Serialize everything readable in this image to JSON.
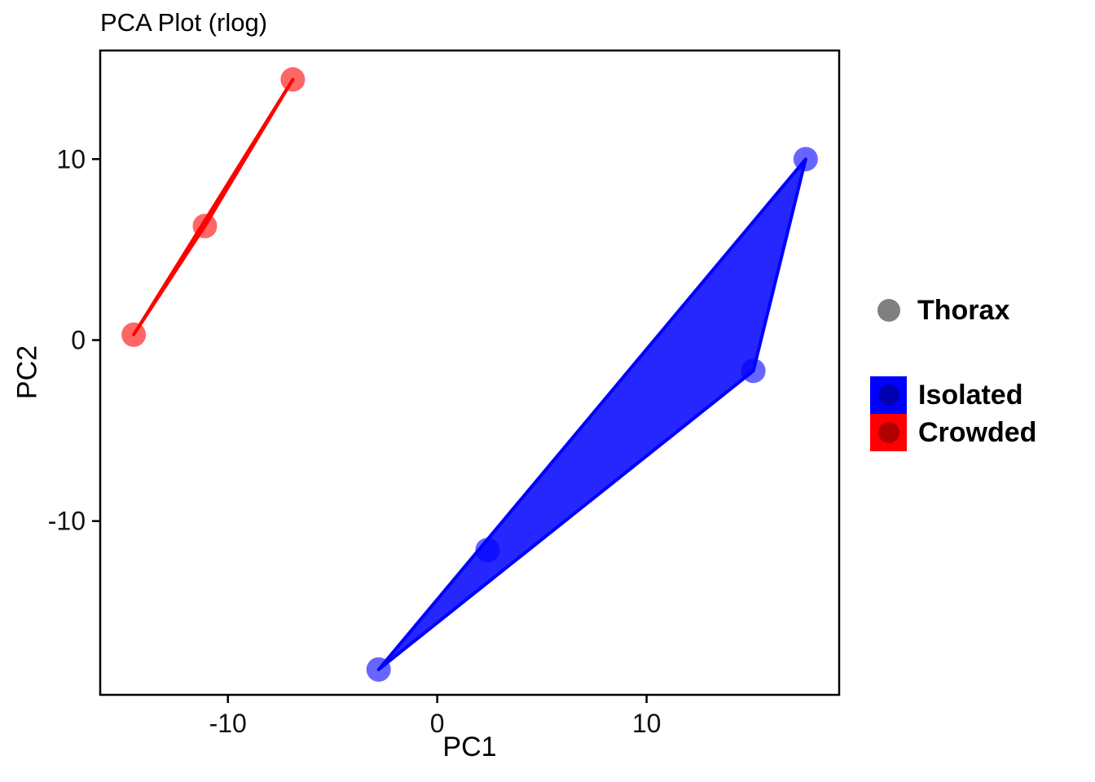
{
  "title": "PCA Plot (rlog)",
  "chart_data": {
    "type": "scatter",
    "title": "PCA Plot (rlog)",
    "xlabel": "PC1",
    "ylabel": "PC2",
    "xlim": [
      -16.1,
      19.2
    ],
    "ylim": [
      -19.6,
      16.0
    ],
    "xticks": [
      -10,
      0,
      10
    ],
    "yticks": [
      10,
      0,
      -10
    ],
    "grid": false,
    "legend_position": "right",
    "point_legend": {
      "label": "Thorax",
      "color": "#808080"
    },
    "fill_legend_entries": [
      "Isolated",
      "Crowded"
    ],
    "series": [
      {
        "name": "Isolated",
        "color": "#0000FF",
        "points": [
          [
            -2.8,
            -18.2
          ],
          [
            2.4,
            -11.6
          ],
          [
            15.1,
            -1.7
          ],
          [
            17.6,
            10.0
          ]
        ],
        "hull": [
          [
            17.6,
            10.0
          ],
          [
            15.1,
            -1.7
          ],
          [
            -2.8,
            -18.2
          ]
        ]
      },
      {
        "name": "Crowded",
        "color": "#FF0000",
        "points": [
          [
            -14.5,
            0.3
          ],
          [
            -11.1,
            6.3
          ],
          [
            -6.9,
            14.4
          ]
        ],
        "hull": [
          [
            -6.9,
            14.4
          ],
          [
            -11.1,
            6.3
          ],
          [
            -14.5,
            0.3
          ]
        ]
      }
    ]
  }
}
